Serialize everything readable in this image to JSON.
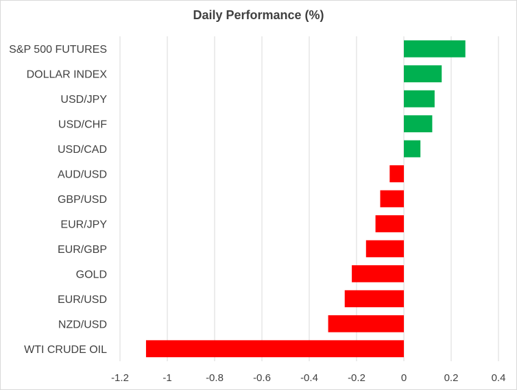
{
  "chart_data": {
    "type": "bar",
    "orientation": "horizontal",
    "title": "Daily Performance (%)",
    "categories": [
      "S&P 500 FUTURES",
      "DOLLAR INDEX",
      "USD/JPY",
      "USD/CHF",
      "USD/CAD",
      "AUD/USD",
      "GBP/USD",
      "EUR/JPY",
      "EUR/GBP",
      "GOLD",
      "EUR/USD",
      "NZD/USD",
      "WTI CRUDE OIL"
    ],
    "values": [
      0.26,
      0.16,
      0.13,
      0.12,
      0.07,
      -0.06,
      -0.1,
      -0.12,
      -0.16,
      -0.22,
      -0.25,
      -0.32,
      -1.09
    ],
    "xlim": [
      -1.2,
      0.4
    ],
    "xticks": [
      -1.2,
      -1,
      -0.8,
      -0.6,
      -0.4,
      -0.2,
      0,
      0.2,
      0.4
    ],
    "xtick_labels": [
      "-1.2",
      "-1",
      "-0.8",
      "-0.6",
      "-0.4",
      "-0.2",
      "0",
      "0.2",
      "0.4"
    ],
    "grid": "vertical",
    "colors": {
      "positive": "#00b050",
      "negative": "#ff0000",
      "grid": "#d9d9d9",
      "text": "#404040"
    }
  }
}
